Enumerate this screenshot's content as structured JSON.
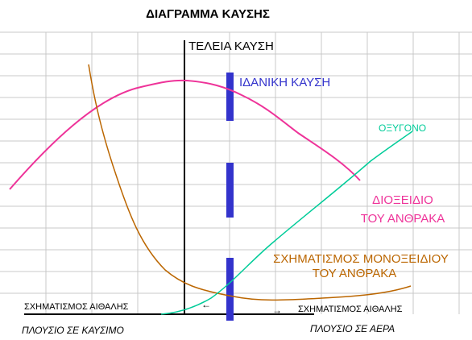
{
  "header": {
    "title": "ΔΙΑΓΡΑΜΜΑ ΚΑΥΣΗΣ"
  },
  "labels": {
    "perfect_combustion": "ΤΕΛΕΙΑ ΚΑΥΣΗ",
    "ideal_combustion": "ΙΔΑΝΙΚΗ ΚΑΥΣΗ",
    "oxygen": "ΟΞΥΓΟΝΟ",
    "carbon_dioxide": [
      "ΔΙΟΞΕΙΔΙΟ",
      "ΤΟΥ ΑΝΘΡΑΚΑ"
    ],
    "carbon_monoxide": [
      "ΣΧΗΜΑΤΙΣΜΟΣ ΜΟΝΟΞΕΙΔΙΟΥ",
      "ΤΟΥ ΑΝΘΡΑΚΑ"
    ],
    "soot_left": "ΣΧΗΜΑΤΙΣΜΟΣ ΑΙΘΑΛΗΣ",
    "soot_right": "ΣΧΗΜΑΤΙΣΜΟΣ ΑΙΘΑΛΗΣ",
    "rich_fuel": "ΠΛΟΥΣΙΟ ΣΕ ΚΑΥΣΙΜΟ",
    "rich_air": "ΠΛΟΥΣΙΟ ΣΕ ΑΕΡΑ"
  }
}
